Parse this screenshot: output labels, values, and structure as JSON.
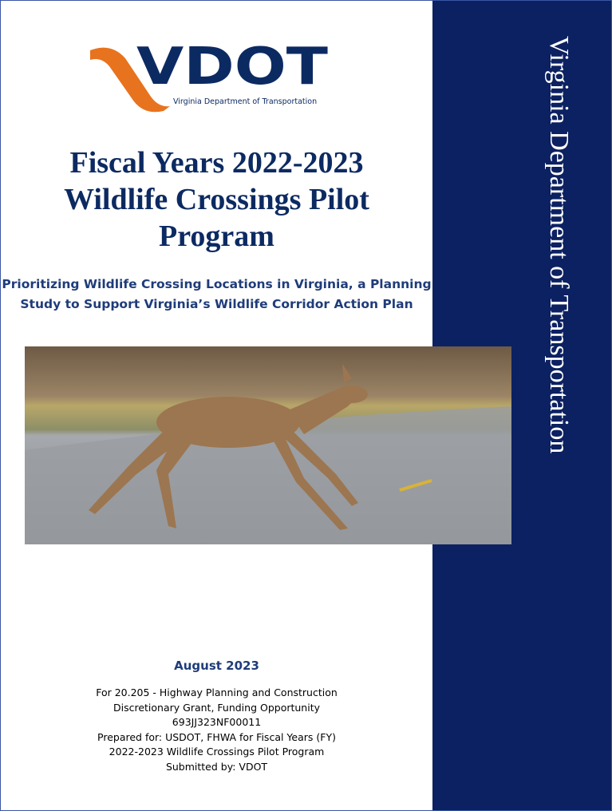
{
  "logo": {
    "name": "VDOT",
    "tagline": "Virginia Department of Transportation"
  },
  "title_lines": [
    "Fiscal Years 2022-2023",
    "Wildlife Crossings Pilot",
    "Program"
  ],
  "subtitle_lines": [
    "Prioritizing Wildlife Crossing Locations in Virginia, a Planning",
    "Study to Support Virginia’s Wildlife Corridor Action Plan"
  ],
  "sidebar": "Virginia Department of Transportation",
  "date": "August 2023",
  "details": [
    "For 20.205 - Highway Planning and Construction",
    "Discretionary Grant, Funding Opportunity",
    "693JJ323NF00011",
    "Prepared for: USDOT, FHWA for Fiscal Years (FY)",
    "2022-2023 Wildlife Crossings Pilot Program",
    "Submitted by: VDOT"
  ]
}
